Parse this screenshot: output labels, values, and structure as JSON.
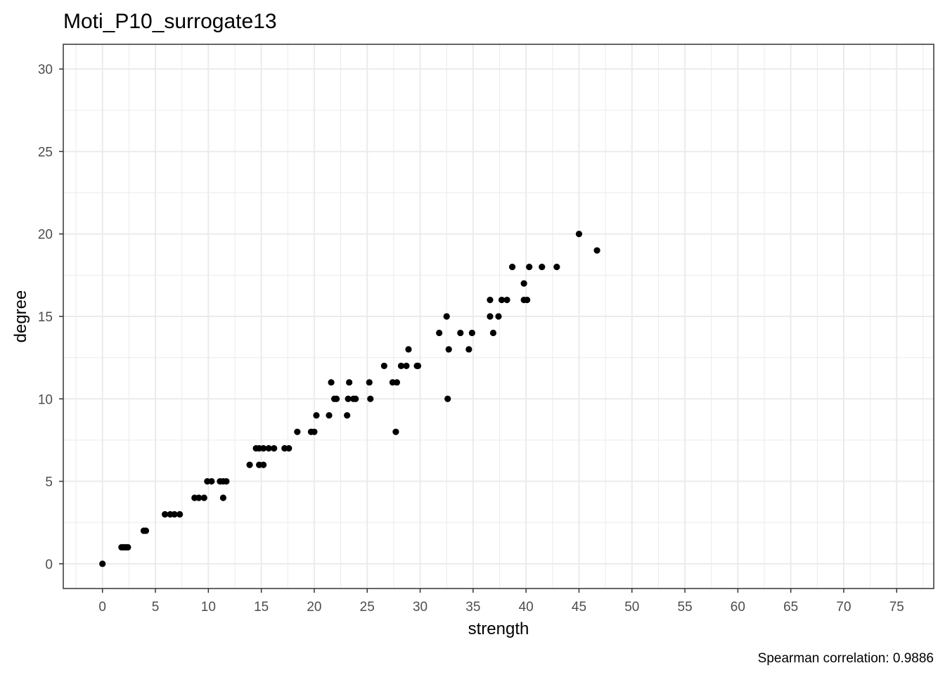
{
  "chart_data": {
    "type": "scatter",
    "title": "Moti_P10_surrogate13",
    "xlabel": "strength",
    "ylabel": "degree",
    "caption": "Spearman correlation: 0.9886",
    "xlim": [
      -3.7,
      78.5
    ],
    "ylim": [
      -1.5,
      31.5
    ],
    "x_ticks": [
      0,
      5,
      10,
      15,
      20,
      25,
      30,
      35,
      40,
      45,
      50,
      55,
      60,
      65,
      70,
      75
    ],
    "y_ticks": [
      0,
      5,
      10,
      15,
      20,
      25,
      30
    ],
    "grid": true,
    "point_color": "#000000",
    "panel_border_color": "#333333",
    "grid_color": "#ebebeb",
    "points": [
      {
        "x": 0.0,
        "y": 0
      },
      {
        "x": 1.8,
        "y": 1
      },
      {
        "x": 2.0,
        "y": 1
      },
      {
        "x": 2.2,
        "y": 1
      },
      {
        "x": 2.4,
        "y": 1
      },
      {
        "x": 3.9,
        "y": 2
      },
      {
        "x": 4.1,
        "y": 2
      },
      {
        "x": 5.9,
        "y": 3
      },
      {
        "x": 6.4,
        "y": 3
      },
      {
        "x": 6.8,
        "y": 3
      },
      {
        "x": 7.3,
        "y": 3
      },
      {
        "x": 8.7,
        "y": 4
      },
      {
        "x": 9.1,
        "y": 4
      },
      {
        "x": 9.6,
        "y": 4
      },
      {
        "x": 11.4,
        "y": 4
      },
      {
        "x": 9.9,
        "y": 5
      },
      {
        "x": 10.3,
        "y": 5
      },
      {
        "x": 11.1,
        "y": 5
      },
      {
        "x": 11.4,
        "y": 5
      },
      {
        "x": 11.7,
        "y": 5
      },
      {
        "x": 13.9,
        "y": 6
      },
      {
        "x": 14.8,
        "y": 6
      },
      {
        "x": 15.2,
        "y": 6
      },
      {
        "x": 14.5,
        "y": 7
      },
      {
        "x": 14.8,
        "y": 7
      },
      {
        "x": 15.2,
        "y": 7
      },
      {
        "x": 15.7,
        "y": 7
      },
      {
        "x": 16.2,
        "y": 7
      },
      {
        "x": 17.2,
        "y": 7
      },
      {
        "x": 17.6,
        "y": 7
      },
      {
        "x": 18.4,
        "y": 8
      },
      {
        "x": 19.7,
        "y": 8
      },
      {
        "x": 20.0,
        "y": 8
      },
      {
        "x": 27.7,
        "y": 8
      },
      {
        "x": 20.2,
        "y": 9
      },
      {
        "x": 21.4,
        "y": 9
      },
      {
        "x": 23.1,
        "y": 9
      },
      {
        "x": 21.9,
        "y": 10
      },
      {
        "x": 22.1,
        "y": 10
      },
      {
        "x": 23.2,
        "y": 10
      },
      {
        "x": 23.7,
        "y": 10
      },
      {
        "x": 23.9,
        "y": 10
      },
      {
        "x": 25.3,
        "y": 10
      },
      {
        "x": 32.6,
        "y": 10
      },
      {
        "x": 21.6,
        "y": 11
      },
      {
        "x": 23.3,
        "y": 11
      },
      {
        "x": 25.2,
        "y": 11
      },
      {
        "x": 27.4,
        "y": 11
      },
      {
        "x": 27.8,
        "y": 11
      },
      {
        "x": 26.6,
        "y": 12
      },
      {
        "x": 28.2,
        "y": 12
      },
      {
        "x": 28.7,
        "y": 12
      },
      {
        "x": 29.7,
        "y": 12
      },
      {
        "x": 29.8,
        "y": 12
      },
      {
        "x": 28.9,
        "y": 13
      },
      {
        "x": 32.7,
        "y": 13
      },
      {
        "x": 34.6,
        "y": 13
      },
      {
        "x": 31.8,
        "y": 14
      },
      {
        "x": 33.8,
        "y": 14
      },
      {
        "x": 34.9,
        "y": 14
      },
      {
        "x": 36.9,
        "y": 14
      },
      {
        "x": 32.5,
        "y": 15
      },
      {
        "x": 36.6,
        "y": 15
      },
      {
        "x": 37.4,
        "y": 15
      },
      {
        "x": 36.6,
        "y": 16
      },
      {
        "x": 37.7,
        "y": 16
      },
      {
        "x": 38.2,
        "y": 16
      },
      {
        "x": 39.8,
        "y": 16
      },
      {
        "x": 40.1,
        "y": 16
      },
      {
        "x": 39.8,
        "y": 17
      },
      {
        "x": 38.7,
        "y": 18
      },
      {
        "x": 40.3,
        "y": 18
      },
      {
        "x": 41.5,
        "y": 18
      },
      {
        "x": 42.9,
        "y": 18
      },
      {
        "x": 46.7,
        "y": 19
      },
      {
        "x": 45.0,
        "y": 20
      }
    ]
  }
}
